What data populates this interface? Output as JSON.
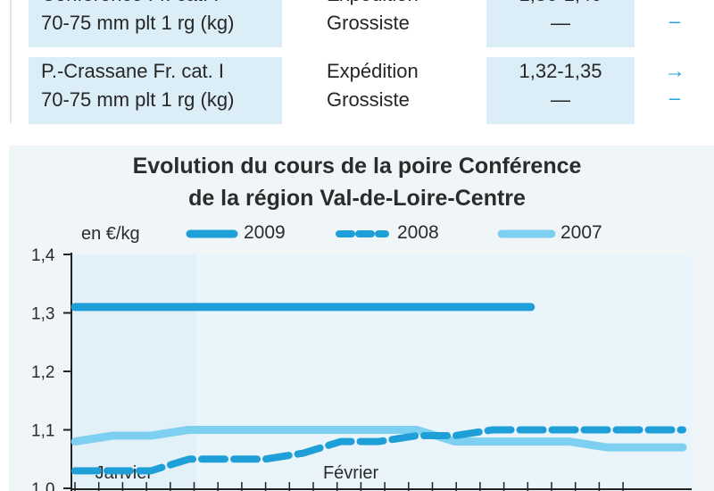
{
  "table": {
    "rows": [
      {
        "product_line1": "Conférence Fr. cat. I",
        "product_line2": "70-75 mm plt 1 rg (kg)",
        "stage_line1": "Expédition",
        "stage_line2": "Grossiste",
        "price_line1": "1,36-1,40",
        "price_line2": "—",
        "trend1": "→",
        "trend2": "–"
      },
      {
        "product_line1": "P.-Crassane Fr. cat. I",
        "product_line2": "70-75 mm plt 1 rg (kg)",
        "stage_line1": "Expédition",
        "stage_line2": "Grossiste",
        "price_line1": "1,32-1,35",
        "price_line2": "—",
        "trend1": "→",
        "trend2": "–"
      }
    ]
  },
  "chart": {
    "title_line1": "Evolution du cours de la poire Conférence",
    "title_line2": "de la région Val-de-Loire-Centre",
    "unit": "en €/kg",
    "legend": [
      "2009",
      "2008",
      "2007"
    ]
  },
  "chart_data": {
    "type": "line",
    "title": "Evolution du cours de la poire Conférence de la région Val-de-Loire-Centre",
    "ylabel": "en €/kg",
    "ylim": [
      1.0,
      1.4
    ],
    "yticks": [
      "1,0",
      "1,1",
      "1,2",
      "1,3",
      "1,4"
    ],
    "ytick_values": [
      1.0,
      1.1,
      1.2,
      1.3,
      1.4
    ],
    "x_labels": [
      "Janvier",
      "Février"
    ],
    "x_label_weeks": [
      1,
      7
    ],
    "xlim": [
      0,
      16
    ],
    "grid": false,
    "legend_position": "top",
    "series": [
      {
        "name": "2009",
        "color": "#1f9fd8",
        "style": "solid",
        "x": [
          0,
          12
        ],
        "values": [
          1.31,
          1.31
        ]
      },
      {
        "name": "2008",
        "color": "#1f9fd8",
        "style": "dashed",
        "x": [
          0,
          1,
          2,
          3,
          4,
          5,
          6,
          7,
          8,
          9,
          10,
          11,
          12,
          13,
          14,
          15,
          16
        ],
        "values": [
          1.03,
          1.03,
          1.03,
          1.05,
          1.05,
          1.05,
          1.06,
          1.08,
          1.08,
          1.09,
          1.09,
          1.1,
          1.1,
          1.1,
          1.1,
          1.1,
          1.1
        ]
      },
      {
        "name": "2007",
        "color": "#7ed0f0",
        "style": "solid",
        "x": [
          0,
          1,
          2,
          3,
          4,
          5,
          6,
          7,
          8,
          9,
          10,
          11,
          12,
          13,
          14,
          15,
          16
        ],
        "values": [
          1.08,
          1.09,
          1.09,
          1.1,
          1.1,
          1.1,
          1.1,
          1.1,
          1.1,
          1.1,
          1.08,
          1.08,
          1.08,
          1.08,
          1.07,
          1.07,
          1.07
        ]
      }
    ]
  }
}
